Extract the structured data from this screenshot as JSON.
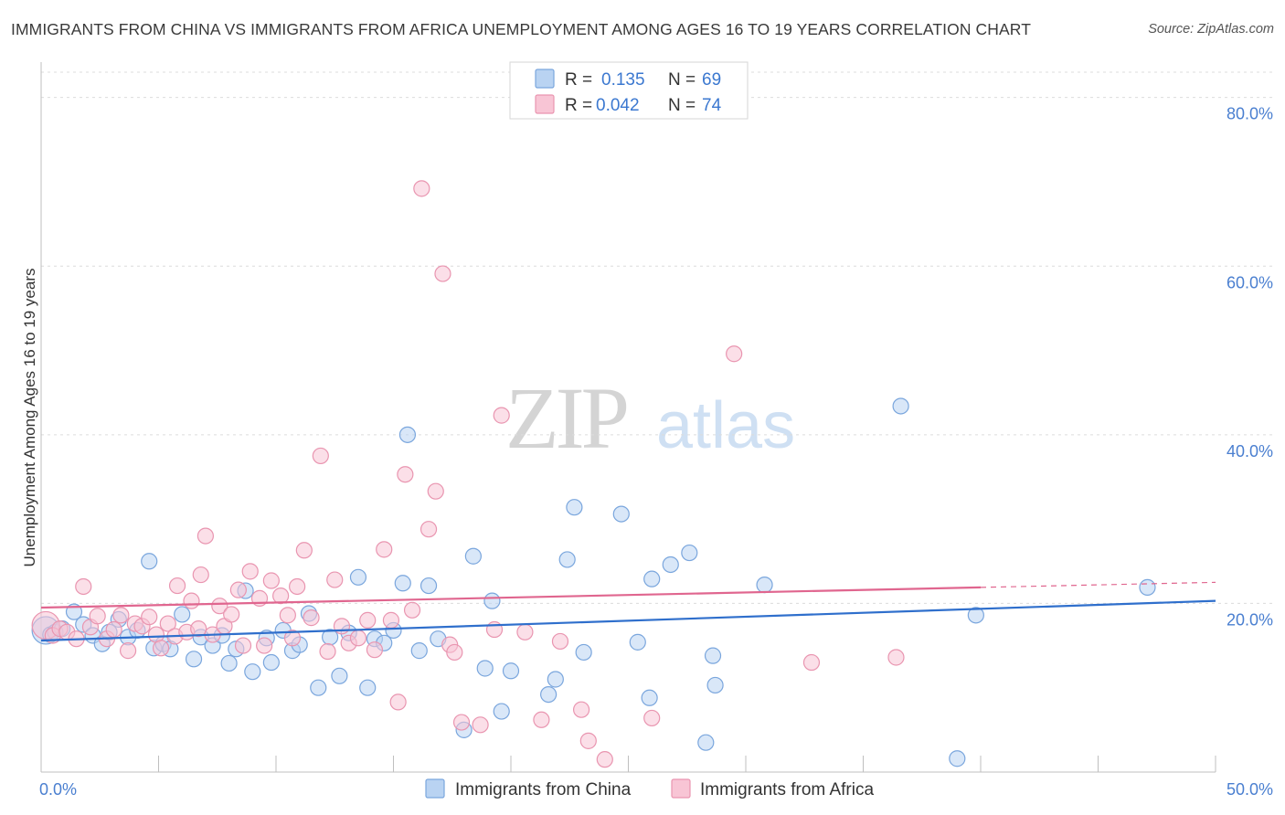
{
  "header": {
    "title": "IMMIGRANTS FROM CHINA VS IMMIGRANTS FROM AFRICA UNEMPLOYMENT AMONG AGES 16 TO 19 YEARS CORRELATION CHART",
    "source": "Source: ZipAtlas.com"
  },
  "watermark": {
    "zip": "ZIP",
    "atlas": "atlas"
  },
  "legend": {
    "china": {
      "r_label": "R =",
      "r_value": "0.135",
      "n_label": "N =",
      "n_value": "69"
    },
    "africa": {
      "r_label": "R =",
      "r_value": "0.042",
      "n_label": "N =",
      "n_value": "74"
    }
  },
  "colors": {
    "china_fill": "#b9d3f2",
    "china_stroke": "#7aa6dd",
    "china_line": "#2f6fcc",
    "africa_fill": "#f8c5d5",
    "africa_stroke": "#e995b0",
    "africa_line": "#e0668f",
    "accent_text": "#3b78d0",
    "grid": "#dcdcdc"
  },
  "chart_data": {
    "type": "scatter",
    "title": "IMMIGRANTS FROM CHINA VS IMMIGRANTS FROM AFRICA UNEMPLOYMENT AMONG AGES 16 TO 19 YEARS CORRELATION CHART",
    "xlabel": "",
    "ylabel": "Unemployment Among Ages 16 to 19 years",
    "xlim": [
      0,
      50
    ],
    "ylim": [
      0,
      83
    ],
    "x_tick_labels": [
      "0.0%",
      "50.0%"
    ],
    "y_ticks": [
      20,
      40,
      60,
      80
    ],
    "y_tick_labels": [
      "20.0%",
      "40.0%",
      "60.0%",
      "80.0%"
    ],
    "grid": true,
    "legend_position": "top-center",
    "series": [
      {
        "name": "Immigrants from China",
        "r": 0.135,
        "n": 69,
        "trend": {
          "x": [
            0,
            50
          ],
          "y": [
            15.6,
            20.3
          ],
          "dashed_from": null
        },
        "points": [
          [
            0.2,
            16.8
          ],
          [
            0.4,
            16.3
          ],
          [
            0.6,
            16.6
          ],
          [
            0.9,
            17.0
          ],
          [
            1.4,
            19.0
          ],
          [
            1.8,
            17.5
          ],
          [
            2.2,
            16.2
          ],
          [
            2.6,
            15.2
          ],
          [
            2.9,
            16.6
          ],
          [
            3.3,
            18.1
          ],
          [
            3.7,
            16.0
          ],
          [
            4.1,
            16.8
          ],
          [
            4.6,
            25.0
          ],
          [
            4.8,
            14.7
          ],
          [
            5.2,
            15.2
          ],
          [
            5.5,
            14.6
          ],
          [
            6.0,
            18.7
          ],
          [
            6.5,
            13.4
          ],
          [
            6.8,
            16.0
          ],
          [
            7.3,
            15.0
          ],
          [
            7.7,
            16.2
          ],
          [
            8.0,
            12.9
          ],
          [
            8.3,
            14.6
          ],
          [
            8.7,
            21.5
          ],
          [
            9.0,
            11.9
          ],
          [
            9.6,
            15.9
          ],
          [
            9.8,
            13.0
          ],
          [
            10.3,
            16.8
          ],
          [
            10.7,
            14.4
          ],
          [
            11.0,
            15.1
          ],
          [
            11.4,
            18.8
          ],
          [
            11.8,
            10.0
          ],
          [
            12.3,
            16.0
          ],
          [
            12.7,
            11.4
          ],
          [
            13.1,
            16.5
          ],
          [
            13.5,
            23.1
          ],
          [
            13.9,
            10.0
          ],
          [
            14.2,
            15.8
          ],
          [
            14.6,
            15.3
          ],
          [
            15.0,
            16.8
          ],
          [
            15.4,
            22.4
          ],
          [
            15.6,
            40.0
          ],
          [
            16.1,
            14.4
          ],
          [
            16.5,
            22.1
          ],
          [
            16.9,
            15.8
          ],
          [
            18.0,
            5.0
          ],
          [
            18.4,
            25.6
          ],
          [
            18.9,
            12.3
          ],
          [
            19.2,
            20.3
          ],
          [
            19.6,
            7.2
          ],
          [
            20.0,
            12.0
          ],
          [
            21.6,
            9.2
          ],
          [
            21.9,
            11.0
          ],
          [
            22.4,
            25.2
          ],
          [
            22.7,
            31.4
          ],
          [
            23.1,
            14.2
          ],
          [
            24.7,
            30.6
          ],
          [
            25.4,
            15.4
          ],
          [
            25.9,
            8.8
          ],
          [
            26.0,
            22.9
          ],
          [
            26.8,
            24.6
          ],
          [
            27.6,
            26.0
          ],
          [
            28.6,
            13.8
          ],
          [
            28.7,
            10.3
          ],
          [
            28.3,
            3.5
          ],
          [
            30.8,
            22.2
          ],
          [
            36.6,
            43.4
          ],
          [
            39.0,
            1.6
          ],
          [
            47.1,
            21.9
          ],
          [
            39.8,
            18.6
          ]
        ]
      },
      {
        "name": "Immigrants from Africa",
        "r": 0.042,
        "n": 74,
        "trend": {
          "x": [
            0,
            50
          ],
          "y": [
            19.5,
            22.5
          ],
          "dashed_from": 40
        },
        "points": [
          [
            0.2,
            17.4
          ],
          [
            0.5,
            16.2
          ],
          [
            0.8,
            17.0
          ],
          [
            1.1,
            16.6
          ],
          [
            1.5,
            15.8
          ],
          [
            1.8,
            22.0
          ],
          [
            2.1,
            17.2
          ],
          [
            2.4,
            18.5
          ],
          [
            2.8,
            15.8
          ],
          [
            3.1,
            16.9
          ],
          [
            3.4,
            18.6
          ],
          [
            3.7,
            14.4
          ],
          [
            4.0,
            17.6
          ],
          [
            4.3,
            17.3
          ],
          [
            4.6,
            18.4
          ],
          [
            4.9,
            16.3
          ],
          [
            5.1,
            14.7
          ],
          [
            5.4,
            17.6
          ],
          [
            5.7,
            16.1
          ],
          [
            5.8,
            22.1
          ],
          [
            6.2,
            16.6
          ],
          [
            6.4,
            20.3
          ],
          [
            6.7,
            17.0
          ],
          [
            6.8,
            23.4
          ],
          [
            7.0,
            28.0
          ],
          [
            7.3,
            16.3
          ],
          [
            7.6,
            19.7
          ],
          [
            7.8,
            17.3
          ],
          [
            8.1,
            18.7
          ],
          [
            8.4,
            21.6
          ],
          [
            8.6,
            15.0
          ],
          [
            8.9,
            23.8
          ],
          [
            9.3,
            20.6
          ],
          [
            9.5,
            15.0
          ],
          [
            9.8,
            22.7
          ],
          [
            10.2,
            20.9
          ],
          [
            10.5,
            18.6
          ],
          [
            10.7,
            15.9
          ],
          [
            10.9,
            22.0
          ],
          [
            11.2,
            26.3
          ],
          [
            11.5,
            18.3
          ],
          [
            11.9,
            37.5
          ],
          [
            12.2,
            14.3
          ],
          [
            12.5,
            22.8
          ],
          [
            12.8,
            17.3
          ],
          [
            13.1,
            15.3
          ],
          [
            13.5,
            15.9
          ],
          [
            13.9,
            18.0
          ],
          [
            14.2,
            14.5
          ],
          [
            14.6,
            26.4
          ],
          [
            14.9,
            18.0
          ],
          [
            15.2,
            8.3
          ],
          [
            15.5,
            35.3
          ],
          [
            15.8,
            19.2
          ],
          [
            16.2,
            69.2
          ],
          [
            16.5,
            28.8
          ],
          [
            16.8,
            33.3
          ],
          [
            17.1,
            59.1
          ],
          [
            17.4,
            15.1
          ],
          [
            17.6,
            14.2
          ],
          [
            17.9,
            5.9
          ],
          [
            18.7,
            5.6
          ],
          [
            19.3,
            16.9
          ],
          [
            19.6,
            42.3
          ],
          [
            21.3,
            6.2
          ],
          [
            22.1,
            15.5
          ],
          [
            23.0,
            7.4
          ],
          [
            23.3,
            3.7
          ],
          [
            24.0,
            1.5
          ],
          [
            26.0,
            6.4
          ],
          [
            29.5,
            49.6
          ],
          [
            32.8,
            13.0
          ],
          [
            36.4,
            13.6
          ],
          [
            20.6,
            16.6
          ]
        ]
      }
    ]
  },
  "bottom_legend": {
    "china": "Immigrants from China",
    "africa": "Immigrants from Africa"
  }
}
